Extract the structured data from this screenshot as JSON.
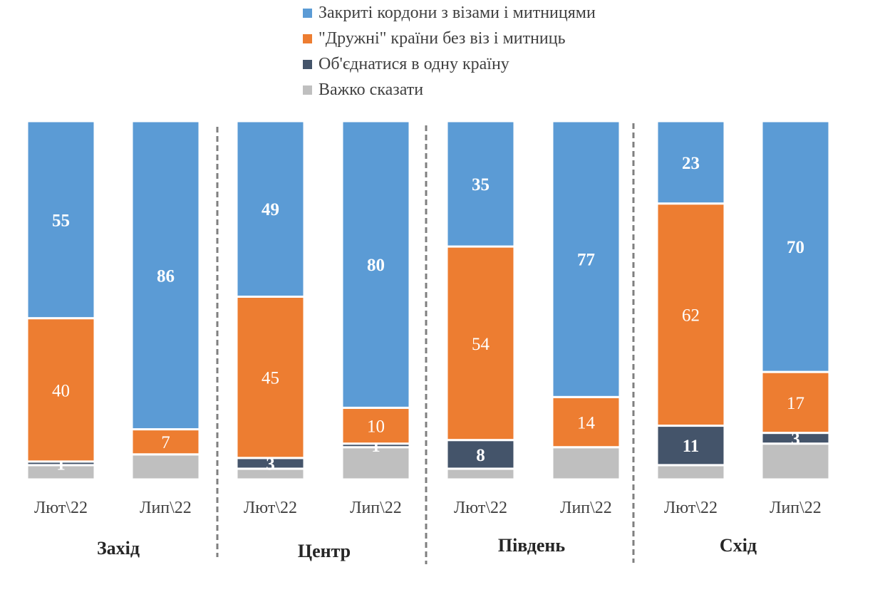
{
  "chart_data": {
    "type": "stacked-bar",
    "ylim": [
      0,
      100
    ],
    "grid": false,
    "legend_position": "top",
    "series": [
      {
        "name": "Закриті кордони з візами і митницями",
        "color": "#5B9BD5",
        "values": [
          55,
          86,
          49,
          80,
          35,
          77,
          23,
          70
        ]
      },
      {
        "name": "\"Дружні\" країни без віз і митниць",
        "color": "#ED7D31",
        "values": [
          40,
          7,
          45,
          10,
          54,
          14,
          62,
          17
        ]
      },
      {
        "name": "Об'єднатися в одну країну",
        "color": "#44546A",
        "values": [
          1,
          0,
          3,
          1,
          8,
          0,
          11,
          3
        ]
      },
      {
        "name": "Важко сказати",
        "color": "#BFBFBF",
        "values": [
          4,
          7,
          3,
          9,
          3,
          9,
          4,
          10
        ]
      }
    ],
    "labels_shown": {
      "Закриті кордони з візами і митницями": [
        true,
        true,
        true,
        true,
        true,
        true,
        true,
        true
      ],
      "\"Дружні\" країни без віз і митниць": [
        true,
        true,
        true,
        true,
        true,
        true,
        true,
        true
      ],
      "Об'єднатися в одну країну": [
        true,
        false,
        true,
        true,
        true,
        false,
        true,
        true
      ],
      "Важко сказати": [
        false,
        false,
        false,
        false,
        false,
        false,
        false,
        false
      ]
    },
    "categories": [
      "Лют\\22",
      "Лип\\22",
      "Лют\\22",
      "Лип\\22",
      "Лют\\22",
      "Лип\\22",
      "Лют\\22",
      "Лип\\22"
    ],
    "groups": [
      "Захід",
      "Центр",
      "Південь",
      "Схід"
    ]
  }
}
